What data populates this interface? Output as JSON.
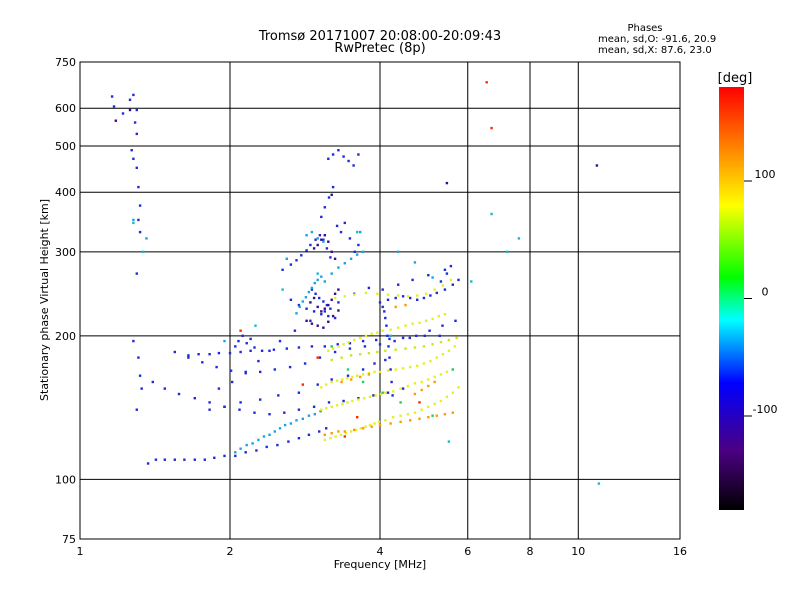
{
  "chart_data": {
    "type": "scatter",
    "title": "Tromsø 20171007 20:08:00-20:09:43",
    "subtitle": "RwPretec (8p)",
    "xlabel": "Frequency [MHz]",
    "ylabel": "Stationary phase Virtual Height [km]",
    "x_scale": "log",
    "y_scale": "log",
    "xlim": [
      1,
      16
    ],
    "ylim": [
      75,
      750
    ],
    "x_ticks": [
      1,
      2,
      4,
      6,
      8,
      10,
      16
    ],
    "y_ticks": [
      75,
      100,
      200,
      300,
      400,
      500,
      600,
      750
    ],
    "grid": true,
    "annotation": {
      "title": "Phases",
      "line1": "mean, sd,O: -91.6, 20.9",
      "line2": "mean, sd,X:  87.6, 23.0"
    },
    "colorbar": {
      "label": "[deg]",
      "range": [
        -180,
        180
      ],
      "ticks": [
        100,
        0,
        -100
      ],
      "colors": [
        "#000000",
        "#4b0082",
        "#0000ff",
        "#00ffff",
        "#00ff00",
        "#ffff00",
        "#ff8000",
        "#ff0000"
      ]
    },
    "series": [
      {
        "color_value": -100,
        "color": "#1e2bd9",
        "x": [
          1.16,
          1.17,
          1.22,
          1.26,
          1.28,
          1.3,
          1.29,
          1.3,
          1.27,
          1.28,
          1.3,
          1.31,
          1.32,
          1.31,
          1.32,
          1.3,
          1.28,
          1.31,
          1.32,
          1.33,
          1.3,
          1.37,
          1.42,
          1.48,
          1.55,
          1.62,
          1.7,
          1.78,
          1.86,
          1.95,
          2.05,
          2.15,
          2.26,
          2.37,
          2.49,
          2.62,
          2.75,
          2.88,
          3.02,
          3.12,
          1.4,
          1.48,
          1.58,
          1.7,
          1.82,
          1.95,
          2.09,
          2.24,
          2.4,
          2.57,
          2.75,
          2.95,
          3.16,
          3.38,
          3.62,
          3.88,
          4.15,
          4.45,
          1.55,
          1.65,
          1.76,
          1.88,
          2.01,
          2.15,
          2.3,
          2.46,
          2.64,
          2.83,
          3.03,
          3.25,
          3.48,
          3.73,
          4.0,
          4.28,
          4.59,
          4.92,
          5.27,
          1.65,
          1.73,
          1.82,
          1.9,
          2.0,
          2.1,
          2.2,
          2.32,
          2.45,
          2.6,
          2.75,
          2.92,
          3.1,
          3.29,
          3.48,
          3.7,
          3.93,
          4.18,
          4.45,
          4.73,
          5.03,
          5.34,
          5.67,
          2.05,
          2.08,
          2.12,
          2.16,
          2.2,
          2.24,
          2.55,
          2.65,
          2.72,
          2.78,
          2.85,
          2.9,
          2.97,
          3.03,
          3.08,
          3.13,
          3.18,
          2.92,
          2.97,
          3.02,
          3.08,
          3.13,
          3.18,
          2.65,
          2.75,
          2.85,
          2.95,
          3.05,
          3.15,
          3.25,
          3.15,
          3.22,
          3.3,
          3.38,
          3.46,
          3.54,
          3.62,
          3.05,
          3.1,
          3.16,
          3.22,
          3.28,
          3.34,
          3.4,
          3.48,
          3.56,
          3.62,
          4.0,
          4.15,
          4.3,
          4.45,
          4.6,
          4.75,
          4.9,
          5.05,
          5.2,
          5.4,
          5.6,
          5.75,
          1.82,
          1.95,
          2.1,
          2.3,
          2.5,
          2.75,
          3.0,
          3.2,
          3.45,
          3.7,
          3.9,
          4.1,
          4.05,
          4.08,
          4.1,
          4.12,
          4.14,
          4.16,
          4.18,
          4.2,
          4.22,
          4.24,
          5.3,
          5.45,
          5.55,
          1.9,
          2.02,
          2.15,
          2.28,
          2.4,
          2.52,
          2.7,
          2.9,
          3.1,
          3.3,
          3.55,
          3.8,
          4.05,
          4.35,
          4.65,
          5.0,
          5.4
        ],
        "y": [
          635,
          605,
          585,
          625,
          640,
          595,
          560,
          530,
          490,
          470,
          450,
          410,
          375,
          350,
          330,
          270,
          195,
          180,
          165,
          155,
          140,
          108,
          110,
          110,
          110,
          110,
          110,
          110,
          111,
          112,
          112,
          114,
          115,
          117,
          118,
          120,
          122,
          124,
          126,
          128,
          160,
          155,
          151,
          148,
          145,
          142,
          140,
          138,
          137,
          138,
          140,
          142,
          145,
          146,
          148,
          150,
          152,
          155,
          185,
          180,
          176,
          172,
          169,
          167,
          168,
          170,
          172,
          175,
          180,
          185,
          188,
          190,
          192,
          195,
          198,
          200,
          200,
          182,
          183,
          183,
          184,
          184,
          185,
          186,
          186,
          187,
          188,
          189,
          190,
          190,
          192,
          193,
          195,
          196,
          197,
          198,
          200,
          205,
          210,
          215,
          190,
          195,
          200,
          193,
          197,
          189,
          275,
          282,
          288,
          295,
          302,
          310,
          318,
          325,
          318,
          305,
          292,
          250,
          245,
          240,
          236,
          232,
          228,
          238,
          232,
          228,
          225,
          222,
          220,
          218,
          470,
          480,
          490,
          475,
          465,
          455,
          480,
          355,
          372,
          390,
          410,
          340,
          330,
          345,
          320,
          300,
          310,
          235,
          238,
          240,
          242,
          240,
          238,
          240,
          243,
          246,
          250,
          256,
          262,
          140,
          142,
          145,
          147,
          150,
          152,
          158,
          162,
          165,
          170,
          175,
          178,
          230,
          225,
          218,
          210,
          200,
          190,
          180,
          170,
          160,
          150,
          260,
          270,
          280,
          155,
          160,
          168,
          177,
          186,
          195,
          205,
          215,
          225,
          235,
          245,
          252,
          250,
          256,
          262,
          268,
          275
        ]
      },
      {
        "color_value": -80,
        "color": "#1aa3e8",
        "x": [
          2.05,
          2.1,
          2.16,
          2.22,
          2.28,
          2.34,
          2.4,
          2.46,
          2.52,
          2.58,
          2.65,
          2.72,
          2.8,
          2.88,
          2.96,
          3.04,
          2.72,
          2.76,
          2.8,
          2.84,
          2.88,
          2.92,
          2.96,
          3.0,
          3.05,
          2.85,
          2.92,
          3.0,
          3.08,
          3.1,
          3.2,
          3.3,
          3.4,
          3.5,
          3.6,
          3.7,
          1.28,
          1.36,
          1.95,
          2.6,
          3.65,
          4.35,
          4.7,
          5.1
        ],
        "y": [
          114,
          116,
          118,
          119,
          121,
          123,
          124,
          126,
          128,
          130,
          131,
          133,
          134,
          136,
          137,
          139,
          223,
          230,
          236,
          241,
          247,
          252,
          258,
          262,
          266,
          325,
          330,
          320,
          315,
          260,
          270,
          278,
          284,
          290,
          296,
          300,
          350,
          320,
          195,
          290,
          330,
          300,
          285,
          265
        ]
      },
      {
        "color_value": 110,
        "color": "#e6f020",
        "x": [
          3.1,
          3.18,
          3.26,
          3.34,
          3.42,
          3.5,
          3.58,
          3.66,
          3.74,
          3.82,
          3.9,
          3.98,
          4.1,
          4.25,
          4.4,
          4.55,
          4.7,
          4.85,
          5.0,
          5.15,
          5.3,
          5.45,
          5.6,
          5.75,
          3.05,
          3.12,
          3.2,
          3.28,
          3.36,
          3.44,
          3.52,
          3.6,
          3.7,
          3.8,
          3.9,
          4.0,
          4.15,
          4.3,
          4.45,
          4.6,
          4.75,
          4.9,
          5.05,
          5.2,
          5.35,
          5.5,
          5.65,
          3.15,
          3.22,
          3.3,
          3.38,
          3.46,
          3.55,
          3.65,
          3.75,
          3.85,
          3.95,
          4.05,
          4.2,
          4.35,
          4.5,
          4.65,
          4.8,
          4.95,
          5.1,
          5.25,
          5.4,
          3.05,
          3.12,
          3.2,
          3.28,
          3.36,
          3.44,
          3.52,
          3.62,
          3.72,
          3.82,
          3.92,
          4.02,
          4.1,
          4.25,
          4.4,
          4.55,
          4.7,
          4.85,
          5.0,
          5.15,
          5.3,
          5.45,
          5.6,
          3.25,
          3.4,
          3.55,
          3.75,
          3.95,
          4.15,
          4.35,
          4.55,
          4.75,
          4.95,
          5.15,
          5.35,
          5.55
        ],
        "y": [
          121,
          122,
          123,
          124,
          125,
          126,
          127,
          128,
          129,
          130,
          131,
          132,
          133,
          135,
          136,
          137,
          138,
          140,
          142,
          144,
          146,
          149,
          152,
          156,
          156,
          158,
          160,
          161,
          162,
          163,
          164,
          165,
          166,
          167,
          168,
          168,
          169,
          170,
          171,
          172,
          173,
          175,
          177,
          180,
          183,
          186,
          190,
          186,
          188,
          190,
          192,
          194,
          196,
          198,
          200,
          202,
          203,
          205,
          206,
          208,
          210,
          212,
          213,
          215,
          217,
          220,
          222,
          140,
          141,
          142,
          143,
          144,
          145,
          146,
          147,
          148,
          149,
          150,
          151,
          152,
          153,
          155,
          157,
          159,
          160,
          162,
          164,
          166,
          168,
          170,
          240,
          242,
          244,
          246,
          245,
          244,
          243,
          242,
          243,
          245,
          250,
          255,
          262
        ]
      },
      {
        "color_value": 140,
        "color": "#ff9a00",
        "x": [
          3.1,
          3.2,
          3.3,
          3.4,
          3.55,
          3.7,
          3.85,
          4.0,
          4.2,
          4.4,
          4.6,
          4.8,
          5.0,
          5.2,
          5.4,
          5.6,
          3.35,
          3.5,
          3.65,
          3.8,
          4.7,
          4.85,
          5.0,
          5.15,
          4.3,
          4.5
        ],
        "y": [
          124,
          125,
          126,
          126,
          127,
          128,
          129,
          130,
          131,
          132,
          133,
          134,
          135,
          136,
          137,
          138,
          160,
          162,
          164,
          166,
          151,
          154,
          157,
          160,
          230,
          232
        ]
      },
      {
        "color_value": 170,
        "color": "#ff2a00",
        "x": [
          6.55,
          6.7,
          3.4,
          3.6,
          2.8,
          2.1,
          4.8,
          3.0
        ],
        "y": [
          680,
          545,
          123,
          135,
          158,
          205,
          145,
          180
        ]
      },
      {
        "color_value": -150,
        "color": "#3a0c8c",
        "x": [
          2.95,
          3.0,
          3.05,
          3.1,
          3.15,
          3.2,
          3.25,
          2.9,
          2.95,
          3.0,
          3.05,
          3.1,
          3.15,
          3.2,
          3.25,
          3.3,
          2.85,
          2.92,
          3.0,
          3.08,
          3.15,
          3.22,
          3.3,
          1.18,
          1.26,
          10.9,
          5.45,
          3.2
        ],
        "y": [
          305,
          310,
          318,
          325,
          315,
          300,
          290,
          235,
          240,
          230,
          225,
          228,
          232,
          238,
          245,
          250,
          215,
          212,
          210,
          208,
          214,
          220,
          226,
          565,
          595,
          455,
          418,
          395
        ]
      },
      {
        "color_value": 80,
        "color": "#c8e818",
        "x": [
          3.2,
          3.35,
          3.5,
          3.65,
          3.8,
          3.95,
          4.1,
          4.3,
          4.5,
          4.7,
          4.9,
          5.1,
          5.3,
          5.5,
          5.7
        ],
        "y": [
          178,
          180,
          182,
          183,
          184,
          185,
          186,
          187,
          188,
          189,
          190,
          192,
          194,
          196,
          198
        ]
      },
      {
        "color_value": 30,
        "color": "#20d060",
        "x": [
          3.2,
          3.45,
          3.7,
          4.05,
          4.4,
          5.1,
          5.6
        ],
        "y": [
          190,
          170,
          160,
          152,
          145,
          136,
          170
        ]
      },
      {
        "color_value": -50,
        "color": "#1ab8c8",
        "x": [
          1.28,
          1.34,
          2.25,
          2.55,
          3.0,
          3.6,
          4.2,
          5.5,
          6.1,
          6.7,
          7.2,
          7.6,
          11.0
        ],
        "y": [
          345,
          300,
          210,
          250,
          270,
          330,
          200,
          120,
          260,
          360,
          300,
          320,
          98
        ]
      }
    ]
  }
}
